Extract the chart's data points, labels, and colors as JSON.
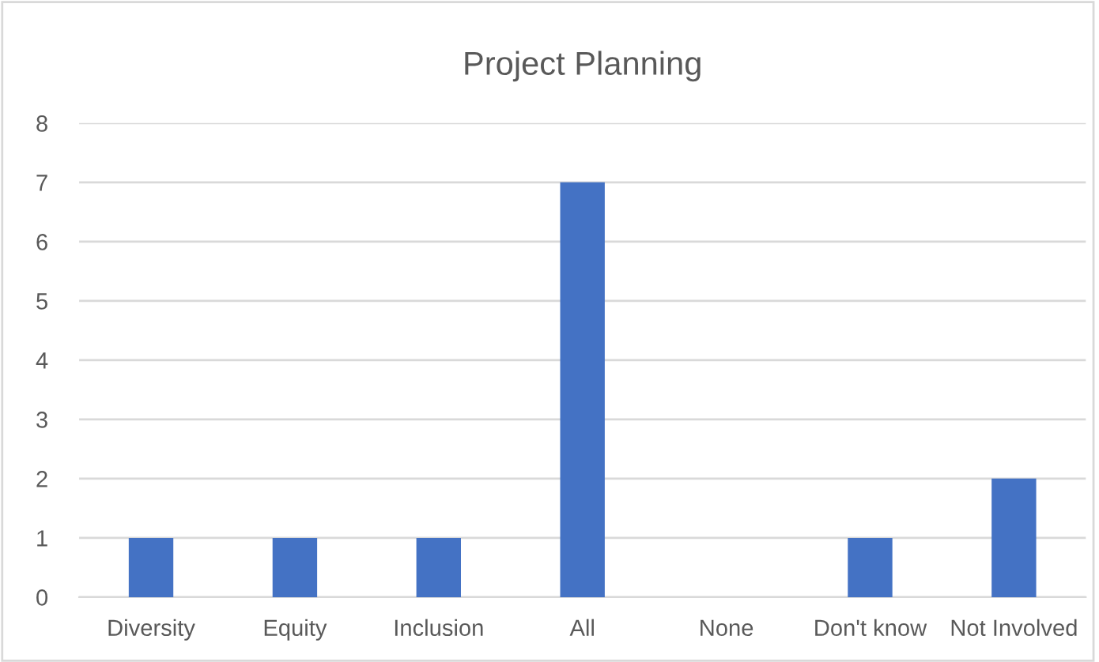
{
  "chart_data": {
    "type": "bar",
    "title": "Project Planning",
    "categories": [
      "Diversity",
      "Equity",
      "Inclusion",
      "All",
      "None",
      "Don't know",
      "Not Involved"
    ],
    "values": [
      1,
      1,
      1,
      7,
      0,
      1,
      2
    ],
    "color": "#4472c4",
    "ylim": [
      0,
      8
    ],
    "yticks": [
      0,
      1,
      2,
      3,
      4,
      5,
      6,
      7,
      8
    ],
    "grid": "y",
    "legend": false
  }
}
